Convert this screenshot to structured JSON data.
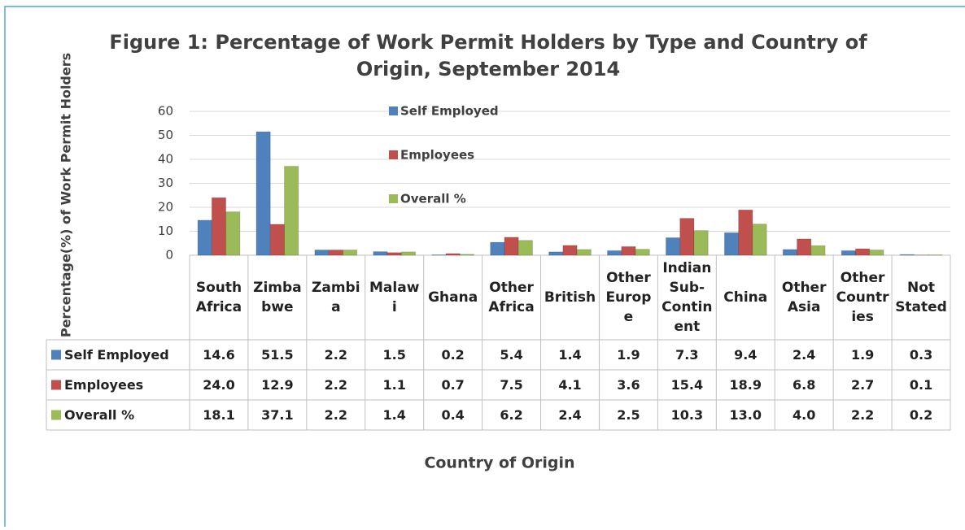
{
  "chart_data": {
    "type": "bar",
    "title": "Figure 1: Percentage of Work Permit Holders by Type and Country of Origin, September 2014",
    "y_label": "Percentage(%)  of Work Permit Holders",
    "x_label": "Country of Origin",
    "categories": [
      "South Africa",
      "Zimbabwe",
      "Zambia",
      "Malawi",
      "Ghana",
      "Other Africa",
      "British",
      "Other Europe",
      "Indian Sub-Continent",
      "China",
      "Other Asia",
      "Other Countries",
      "Not Stated"
    ],
    "series": [
      {
        "name": "Self Employed",
        "color": "#4f81bd",
        "values": [
          14.6,
          51.5,
          2.2,
          1.5,
          0.2,
          5.4,
          1.4,
          1.9,
          7.3,
          9.4,
          2.4,
          1.9,
          0.3
        ],
        "value_labels": [
          "14.6",
          "51.5",
          "2.2",
          "1.5",
          "0.2",
          "5.4",
          "1.4",
          "1.9",
          "7.3",
          "9.4",
          "2.4",
          "1.9",
          "0.3"
        ]
      },
      {
        "name": "Employees",
        "color": "#c0504d",
        "values": [
          24.0,
          12.9,
          2.2,
          1.1,
          0.7,
          7.5,
          4.1,
          3.6,
          15.4,
          18.9,
          6.8,
          2.7,
          0.1
        ],
        "value_labels": [
          "24.0",
          "12.9",
          "2.2",
          "1.1",
          "0.7",
          "7.5",
          "4.1",
          "3.6",
          "15.4",
          "18.9",
          "6.8",
          "2.7",
          "0.1"
        ]
      },
      {
        "name": "Overall %",
        "color": "#9bbb59",
        "values": [
          18.1,
          37.1,
          2.2,
          1.4,
          0.4,
          6.2,
          2.4,
          2.5,
          10.3,
          13.0,
          4.0,
          2.2,
          0.2
        ],
        "value_labels": [
          "18.1",
          "37.1",
          "2.2",
          "1.4",
          "0.4",
          "6.2",
          "2.4",
          "2.5",
          "10.3",
          "13.0",
          "4.0",
          "2.2",
          "0.2"
        ]
      }
    ],
    "ylim": [
      0,
      60
    ],
    "yticks": [
      0,
      10,
      20,
      30,
      40,
      50,
      60
    ],
    "grid": true
  }
}
